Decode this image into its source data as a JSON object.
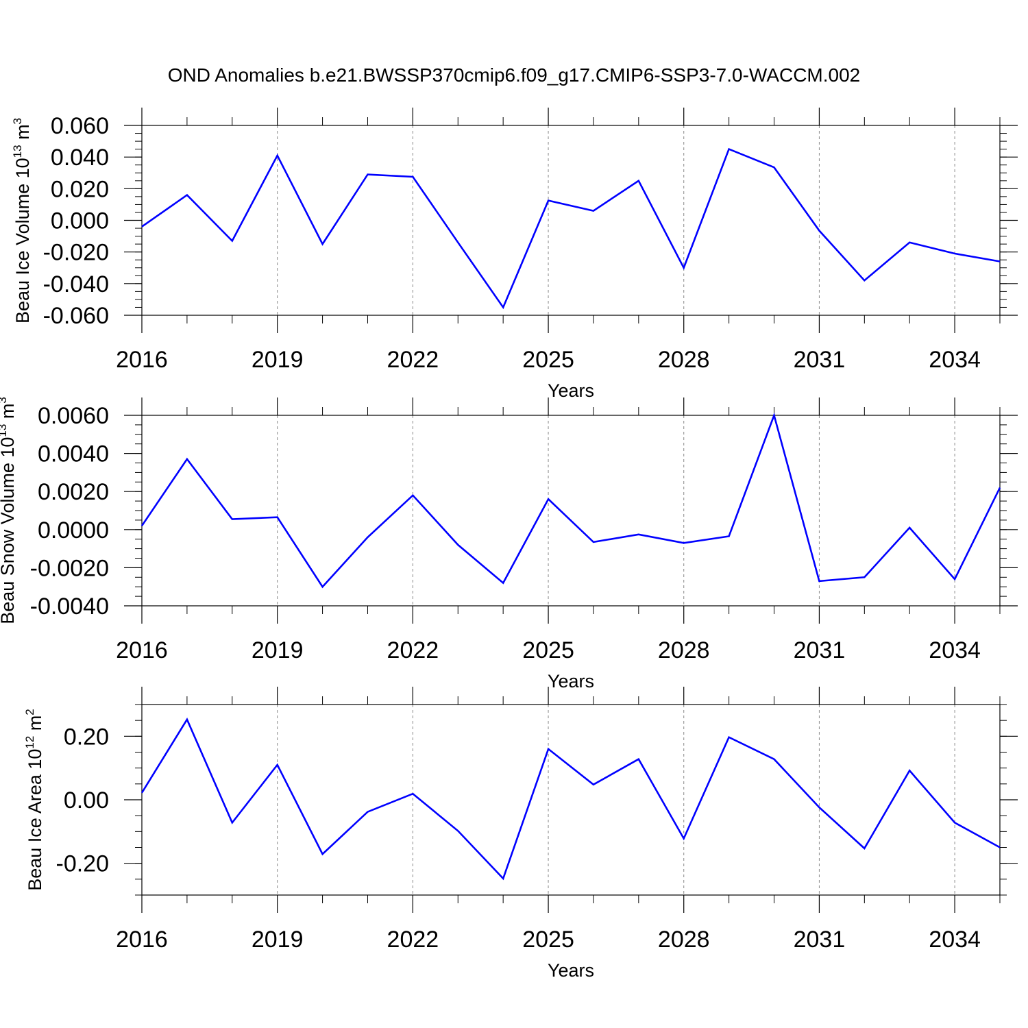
{
  "title": "OND Anomalies b.e21.BWSSP370cmip6.f09_g17.CMIP6-SSP3-7.0-WACCM.002",
  "colors": {
    "series": "#0000ff",
    "axis": "#000000",
    "grid": "#888888"
  },
  "chart_data": [
    {
      "type": "line",
      "xlabel": "Years",
      "ylabel": {
        "text": "Beau Ice Volume 10",
        "exp": "13",
        "unit": " m",
        "unit_exp": "3"
      },
      "x": [
        2016,
        2017,
        2018,
        2019,
        2020,
        2021,
        2022,
        2023,
        2024,
        2025,
        2026,
        2027,
        2028,
        2029,
        2030,
        2031,
        2032,
        2033,
        2034,
        2035
      ],
      "values": [
        -0.004,
        0.016,
        -0.013,
        0.041,
        -0.015,
        0.029,
        0.0275,
        -0.014,
        -0.055,
        0.0125,
        0.006,
        0.025,
        -0.03,
        0.045,
        0.0335,
        -0.0065,
        -0.038,
        -0.014,
        -0.021,
        -0.026
      ],
      "xlim": [
        2016,
        2035
      ],
      "ylim": [
        -0.06,
        0.06
      ],
      "xticks": [
        2016,
        2019,
        2022,
        2025,
        2028,
        2031,
        2034
      ],
      "xtick_labels": [
        "2016",
        "2019",
        "2022",
        "2025",
        "2028",
        "2031",
        "2034"
      ],
      "yticks": [
        0.06,
        0.04,
        0.02,
        0.0,
        -0.02,
        -0.04,
        -0.06
      ],
      "ytick_labels": [
        "0.060",
        "0.040",
        "0.020",
        "0.000",
        "-0.020",
        "-0.040",
        "-0.060"
      ],
      "minor_y_step": 0.005,
      "grid": "vertical dashed at major x ticks"
    },
    {
      "type": "line",
      "xlabel": "Years",
      "ylabel": {
        "text": "Beau Snow Volume 10",
        "exp": "13",
        "unit": " m",
        "unit_exp": "3"
      },
      "x": [
        2016,
        2017,
        2018,
        2019,
        2020,
        2021,
        2022,
        2023,
        2024,
        2025,
        2026,
        2027,
        2028,
        2029,
        2030,
        2031,
        2032,
        2033,
        2034,
        2035
      ],
      "values": [
        0.0002,
        0.0037,
        0.00055,
        0.00065,
        -0.003,
        -0.0004,
        0.0018,
        -0.0008,
        -0.0028,
        0.0016,
        -0.00065,
        -0.00025,
        -0.0007,
        -0.00035,
        0.006,
        -0.0027,
        -0.0025,
        0.0001,
        -0.0026,
        0.0022
      ],
      "xlim": [
        2016,
        2035
      ],
      "ylim": [
        -0.004,
        0.006
      ],
      "xticks": [
        2016,
        2019,
        2022,
        2025,
        2028,
        2031,
        2034
      ],
      "xtick_labels": [
        "2016",
        "2019",
        "2022",
        "2025",
        "2028",
        "2031",
        "2034"
      ],
      "yticks": [
        0.006,
        0.004,
        0.002,
        0.0,
        -0.002,
        -0.004
      ],
      "ytick_labels": [
        "0.0060",
        "0.0040",
        "0.0020",
        "0.0000",
        "-0.0020",
        "-0.0040"
      ],
      "minor_y_step": 0.0005,
      "grid": "vertical dashed at major x ticks"
    },
    {
      "type": "line",
      "xlabel": "Years",
      "ylabel": {
        "text": "Beau Ice Area 10",
        "exp": "12",
        "unit": " m",
        "unit_exp": "2"
      },
      "x": [
        2016,
        2017,
        2018,
        2019,
        2020,
        2021,
        2022,
        2023,
        2024,
        2025,
        2026,
        2027,
        2028,
        2029,
        2030,
        2031,
        2032,
        2033,
        2034,
        2035
      ],
      "values": [
        0.022,
        0.253,
        -0.072,
        0.11,
        -0.171,
        -0.038,
        0.019,
        -0.098,
        -0.248,
        0.16,
        0.048,
        0.128,
        -0.122,
        0.197,
        0.128,
        -0.024,
        -0.153,
        0.092,
        -0.072,
        -0.15
      ],
      "xlim": [
        2016,
        2035
      ],
      "ylim": [
        -0.3,
        0.3
      ],
      "xticks": [
        2016,
        2019,
        2022,
        2025,
        2028,
        2031,
        2034
      ],
      "xtick_labels": [
        "2016",
        "2019",
        "2022",
        "2025",
        "2028",
        "2031",
        "2034"
      ],
      "yticks": [
        0.2,
        0.0,
        -0.2
      ],
      "ytick_labels": [
        "0.20",
        "0.00",
        "-0.20"
      ],
      "minor_y_step": 0.05,
      "grid": "vertical dashed at major x ticks"
    }
  ]
}
